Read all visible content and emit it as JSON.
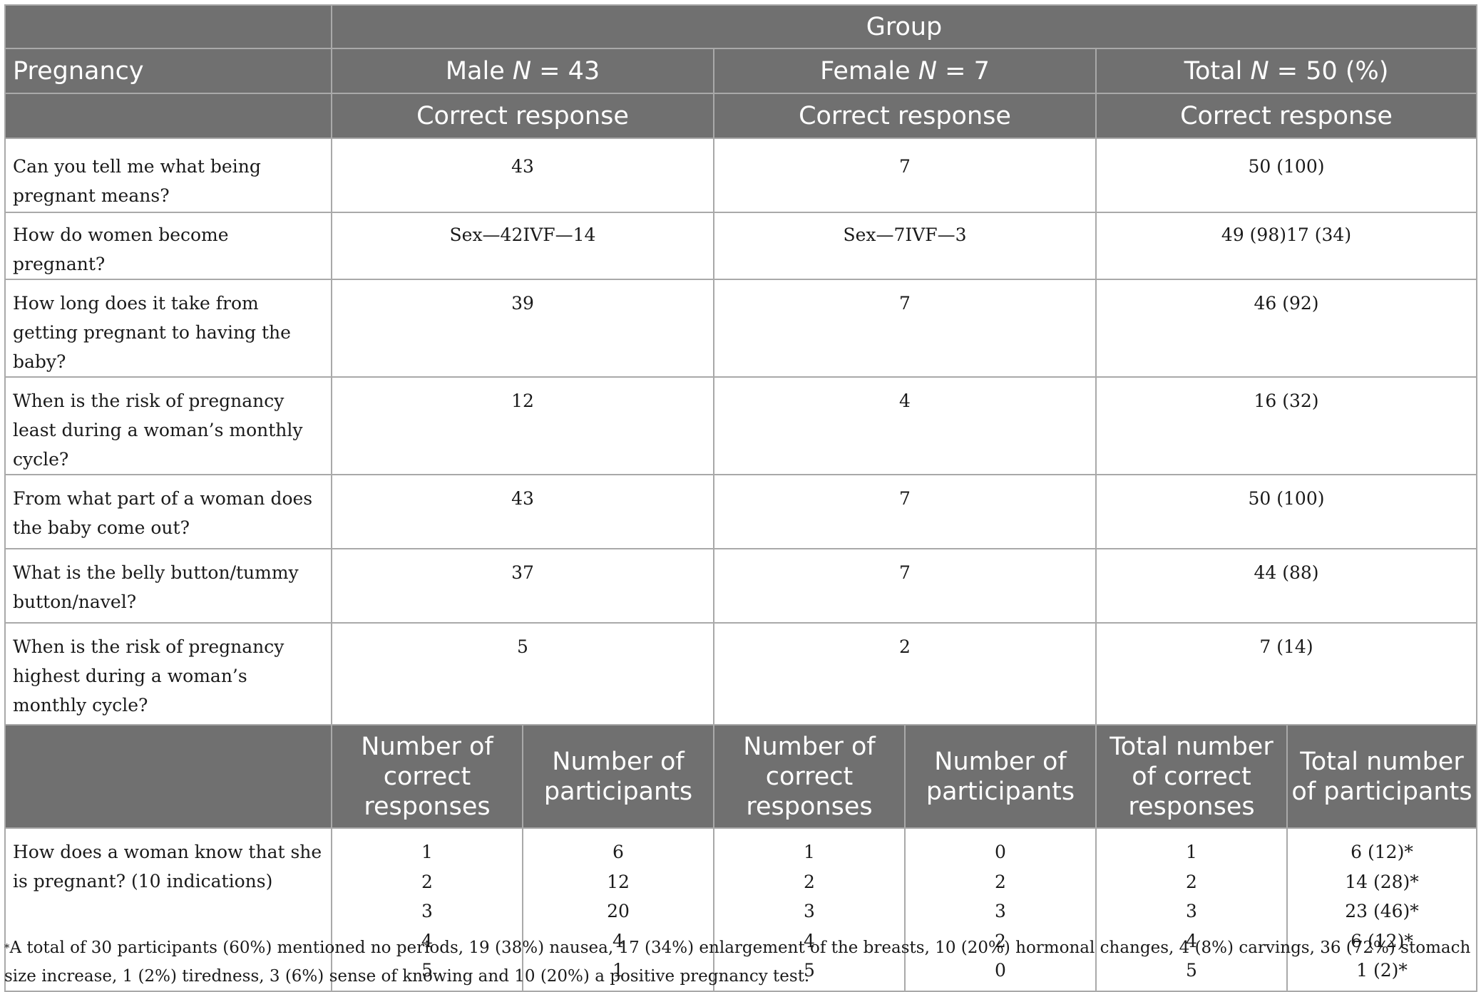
{
  "header": {
    "group": "Group",
    "pregnancy": "Pregnancy",
    "male": {
      "label": "Male ",
      "n_var": "N",
      "n_val": " = 43"
    },
    "female": {
      "label": "Female ",
      "n_var": "N",
      "n_val": " = 7"
    },
    "total": {
      "label": "Total ",
      "n_var": "N",
      "n_val": " = 50 (%)"
    },
    "correct_response": "Correct response"
  },
  "rows": [
    {
      "question": "Can you tell me what being pregnant means?",
      "male": "43",
      "female": "7",
      "total": "50 (100)"
    },
    {
      "question": "How do women become pregnant?",
      "male": "Sex—42IVF—14",
      "female": "Sex—7IVF—3",
      "total": "49 (98)17 (34)"
    },
    {
      "question": "How long does it take from getting pregnant to having the baby?",
      "male": "39",
      "female": "7",
      "total": "46 (92)"
    },
    {
      "question": "When is the risk of pregnancy least during a woman’s monthly cycle?",
      "male": "12",
      "female": "4",
      "total": "16 (32)"
    },
    {
      "question": "From what part of a woman does the baby come out?",
      "male": "43",
      "female": "7",
      "total": "50 (100)"
    },
    {
      "question": "What is the belly button/tummy button/navel?",
      "male": "37",
      "female": "7",
      "total": "44 (88)"
    },
    {
      "question": "When is the risk of pregnancy highest during a woman’s monthly cycle?",
      "male": "5",
      "female": "2",
      "total": "7 (14)"
    }
  ],
  "sub_header": {
    "male_correct": "Number of correct responses",
    "male_participants": "Number of participants",
    "female_correct": "Number of correct responses",
    "female_participants": "Number of participants",
    "total_correct": "Total number of correct responses",
    "total_participants": "Total number of participants"
  },
  "indications": {
    "question": "How does a woman know that she is pregnant? (10 indications)",
    "male_correct": [
      "1",
      "2",
      "3",
      "4",
      "5"
    ],
    "male_participants": [
      "6",
      "12",
      "20",
      "4",
      "1"
    ],
    "female_correct": [
      "1",
      "2",
      "3",
      "4",
      "5"
    ],
    "female_participants": [
      "0",
      "2",
      "3",
      "2",
      "0"
    ],
    "total_correct": [
      "1",
      "2",
      "3",
      "4",
      "5"
    ],
    "total_participants": [
      "6 (12)*",
      "14 (28)*",
      "23 (46)*",
      "6 (12)*",
      "1 (2)*"
    ]
  },
  "footnote": {
    "star": "*",
    "text": "A total of 30 participants (60%) mentioned no periods, 19 (38%) nausea, 17 (34%) enlargement of the breasts, 10 (20%) hormonal changes, 4 (8%) carvings, 36 (72%) stomach size increase, 1 (2%) tiredness, 3 (6%) sense of knowing and 10 (20%) a positive pregnancy test."
  }
}
